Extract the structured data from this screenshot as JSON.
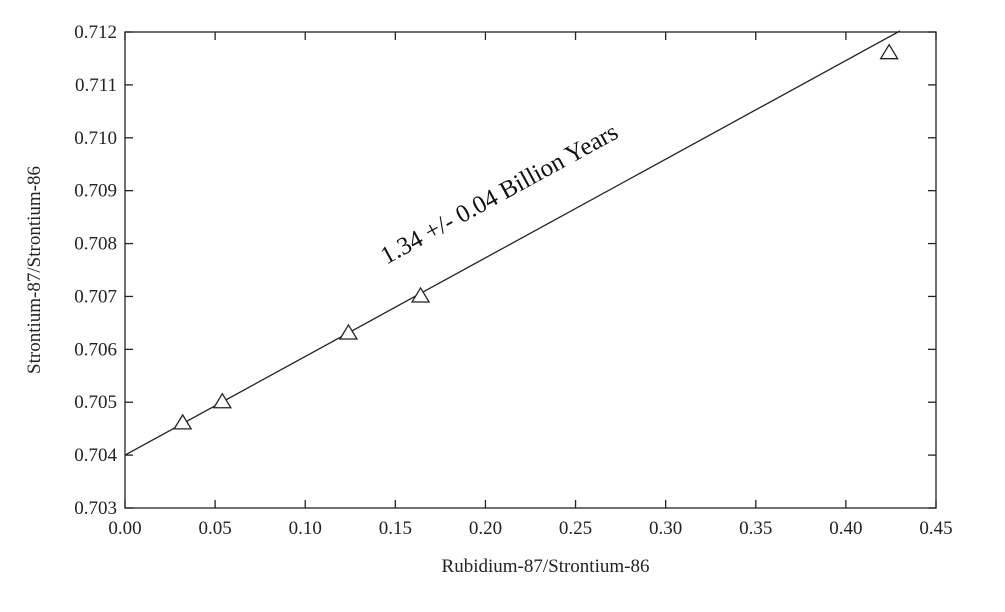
{
  "chart_data": {
    "type": "scatter",
    "title": "",
    "xlabel": "Rubidium-87/Strontium-86",
    "ylabel": "Strontium-87/Strontium-86",
    "xlim": [
      0.0,
      0.45
    ],
    "ylim": [
      0.703,
      0.712
    ],
    "xticks": [
      "0.00",
      "0.05",
      "0.10",
      "0.15",
      "0.20",
      "0.25",
      "0.30",
      "0.35",
      "0.40",
      "0.45"
    ],
    "yticks": [
      "0.703",
      "0.704",
      "0.705",
      "0.706",
      "0.707",
      "0.708",
      "0.709",
      "0.710",
      "0.711",
      "0.712"
    ],
    "grid": false,
    "legend": "none",
    "marker": "open-triangle",
    "series": [
      {
        "points": [
          {
            "x": 0.032,
            "y": 0.7046
          },
          {
            "x": 0.054,
            "y": 0.705
          },
          {
            "x": 0.124,
            "y": 0.7063
          },
          {
            "x": 0.164,
            "y": 0.707
          },
          {
            "x": 0.424,
            "y": 0.7116
          }
        ]
      }
    ],
    "fit_line": {
      "intercept": 0.704,
      "slope": 0.01865,
      "x_range": [
        0.0,
        0.43
      ]
    },
    "annotation": {
      "text": "1.34 +/- 0.04 Billion Years",
      "x": 0.145,
      "y": 0.7076
    }
  }
}
